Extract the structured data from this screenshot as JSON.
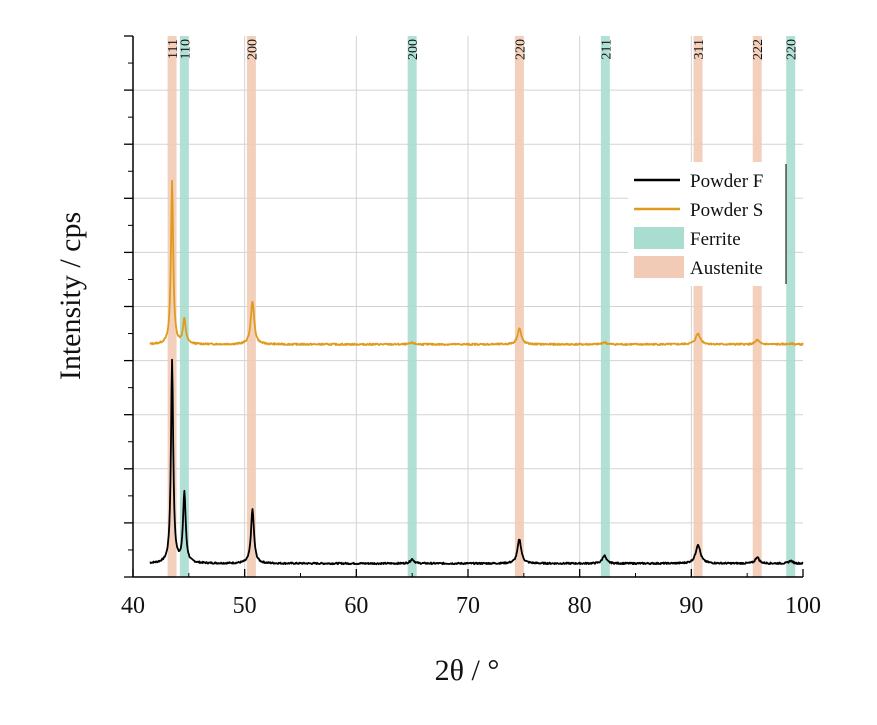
{
  "chart_data": {
    "type": "line",
    "title": "",
    "xlabel": "2θ / °",
    "ylabel": "Intensity / cps",
    "xlim": [
      40,
      100
    ],
    "ylim": [
      0,
      10
    ],
    "x_ticks": [
      40,
      50,
      60,
      70,
      80,
      90,
      100
    ],
    "x_tick_labels": [
      "40",
      "50",
      "60",
      "70",
      "80",
      "90",
      "100"
    ],
    "grid": true,
    "legend_position": "right",
    "colors": {
      "powder_f": "#000000",
      "powder_s": "#E09A1C",
      "ferrite": "#A8DDD0",
      "austenite": "#F1CBB5"
    },
    "legend": [
      {
        "key": "powder_f",
        "label": "Powder F",
        "kind": "line"
      },
      {
        "key": "powder_s",
        "label": "Powder S",
        "kind": "line"
      },
      {
        "key": "ferrite",
        "label": "Ferrite",
        "kind": "band"
      },
      {
        "key": "austenite",
        "label": "Austenite",
        "kind": "band"
      }
    ],
    "phase_bands": [
      {
        "phase": "austenite",
        "position": 43.5,
        "label": "111"
      },
      {
        "phase": "ferrite",
        "position": 44.6,
        "label": "110"
      },
      {
        "phase": "austenite",
        "position": 50.6,
        "label": "200"
      },
      {
        "phase": "ferrite",
        "position": 65.0,
        "label": "200"
      },
      {
        "phase": "austenite",
        "position": 74.6,
        "label": "220"
      },
      {
        "phase": "ferrite",
        "position": 82.3,
        "label": "211"
      },
      {
        "phase": "austenite",
        "position": 90.6,
        "label": "311"
      },
      {
        "phase": "austenite",
        "position": 95.9,
        "label": "222"
      },
      {
        "phase": "ferrite",
        "position": 98.9,
        "label": "220"
      }
    ],
    "series": [
      {
        "key": "powder_f",
        "name": "Powder F",
        "baseline": 0.25,
        "peaks": [
          {
            "x": 43.5,
            "height": 3.75,
            "width": 0.12
          },
          {
            "x": 44.6,
            "height": 1.3,
            "width": 0.14
          },
          {
            "x": 50.7,
            "height": 1.0,
            "width": 0.16
          },
          {
            "x": 65.0,
            "height": 0.08,
            "width": 0.2
          },
          {
            "x": 74.6,
            "height": 0.45,
            "width": 0.2
          },
          {
            "x": 82.2,
            "height": 0.15,
            "width": 0.2
          },
          {
            "x": 90.6,
            "height": 0.35,
            "width": 0.25
          },
          {
            "x": 95.9,
            "height": 0.12,
            "width": 0.2
          },
          {
            "x": 98.9,
            "height": 0.05,
            "width": 0.2
          }
        ]
      },
      {
        "key": "powder_s",
        "name": "Powder S",
        "baseline": 4.3,
        "peaks": [
          {
            "x": 43.5,
            "height": 3.0,
            "width": 0.12
          },
          {
            "x": 44.6,
            "height": 0.45,
            "width": 0.15
          },
          {
            "x": 50.7,
            "height": 0.8,
            "width": 0.18
          },
          {
            "x": 65.0,
            "height": 0.03,
            "width": 0.2
          },
          {
            "x": 74.6,
            "height": 0.3,
            "width": 0.2
          },
          {
            "x": 82.2,
            "height": 0.04,
            "width": 0.2
          },
          {
            "x": 90.6,
            "height": 0.2,
            "width": 0.25
          },
          {
            "x": 95.9,
            "height": 0.08,
            "width": 0.2
          },
          {
            "x": 98.9,
            "height": 0.02,
            "width": 0.2
          }
        ]
      }
    ]
  }
}
